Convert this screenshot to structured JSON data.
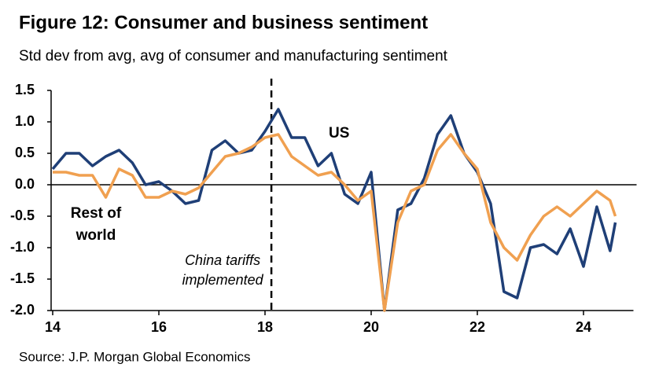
{
  "chart_data": {
    "type": "line",
    "title": "Figure 12: Consumer and business sentiment",
    "subtitle": "Std dev from avg, avg of consumer and manufacturing sentiment",
    "source": "Source: J.P. Morgan Global Economics",
    "x": [
      14.0,
      14.25,
      14.5,
      14.75,
      15.0,
      15.25,
      15.5,
      15.75,
      16.0,
      16.25,
      16.5,
      16.75,
      17.0,
      17.25,
      17.5,
      17.75,
      18.0,
      18.25,
      18.5,
      18.75,
      19.0,
      19.25,
      19.5,
      19.75,
      20.0,
      20.25,
      20.5,
      20.75,
      21.0,
      21.25,
      21.5,
      21.75,
      22.0,
      22.25,
      22.5,
      22.75,
      23.0,
      23.25,
      23.5,
      23.75,
      24.0,
      24.25,
      24.5,
      24.6
    ],
    "series": [
      {
        "name": "US",
        "color": "#1f3f77",
        "values": [
          0.25,
          0.5,
          0.5,
          0.3,
          0.45,
          0.55,
          0.35,
          0.0,
          0.05,
          -0.1,
          -0.3,
          -0.25,
          0.55,
          0.7,
          0.5,
          0.55,
          0.85,
          1.2,
          0.75,
          0.75,
          0.3,
          0.5,
          -0.15,
          -0.3,
          0.2,
          -2.0,
          -0.4,
          -0.3,
          0.1,
          0.8,
          1.1,
          0.5,
          0.2,
          -0.3,
          -1.7,
          -1.8,
          -1.0,
          -0.95,
          -1.1,
          -0.7,
          -1.3,
          -0.35,
          -1.05,
          -0.6
        ]
      },
      {
        "name": "Rest of world",
        "color": "#f0a050",
        "values": [
          0.2,
          0.2,
          0.15,
          0.15,
          -0.2,
          0.25,
          0.15,
          -0.2,
          -0.2,
          -0.1,
          -0.15,
          -0.05,
          0.2,
          0.45,
          0.5,
          0.6,
          0.75,
          0.8,
          0.45,
          0.3,
          0.15,
          0.2,
          0.0,
          -0.25,
          -0.1,
          -2.0,
          -0.6,
          -0.1,
          0.0,
          0.55,
          0.8,
          0.5,
          0.25,
          -0.6,
          -1.0,
          -1.2,
          -0.8,
          -0.5,
          -0.35,
          -0.5,
          -0.3,
          -0.1,
          -0.25,
          -0.5
        ]
      }
    ],
    "xlim": [
      14,
      25
    ],
    "xticks": [
      14,
      16,
      18,
      20,
      22,
      24
    ],
    "ylim": [
      -2,
      1.5
    ],
    "yticks": [
      1.5,
      {
        "value": 1,
        "label": "1.0"
      },
      0.5,
      {
        "value": 0,
        "label": "0.0"
      },
      -0.5,
      {
        "value": -1,
        "label": "-1.0"
      },
      -1.5,
      {
        "value": -2,
        "label": "-2.0"
      }
    ],
    "event": {
      "x": 18.12,
      "label": [
        "China tariffs",
        "implemented"
      ]
    }
  }
}
